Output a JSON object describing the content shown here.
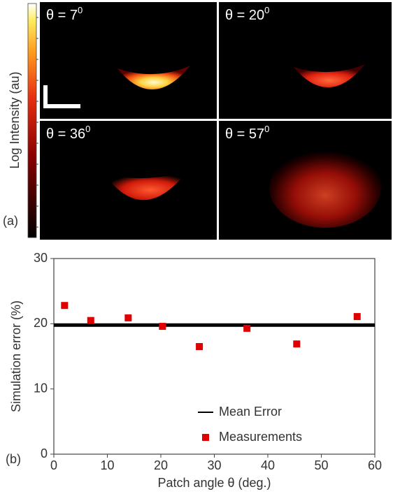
{
  "panel_a": {
    "panel_label": "(a)",
    "colorbar_label": "Log Intensity (au)",
    "images": [
      {
        "label": "θ = 7",
        "superscript": "0"
      },
      {
        "label": "θ = 20",
        "superscript": "0"
      },
      {
        "label": "θ = 36",
        "superscript": "0"
      },
      {
        "label": "θ = 57",
        "superscript": "0"
      }
    ]
  },
  "chart_data": {
    "type": "scatter",
    "panel_label": "(b)",
    "x_label": "Patch angle θ (deg.)",
    "y_label": "Simulation error (%)",
    "xlim": [
      0,
      60
    ],
    "xticks": [
      0,
      10,
      20,
      30,
      40,
      50,
      60
    ],
    "ylim": [
      0,
      30
    ],
    "yticks": [
      0,
      10,
      20,
      30
    ],
    "legend": "lower right",
    "series": [
      {
        "name": "Mean Error",
        "type": "line",
        "color": "#000000",
        "x": [
          0,
          60
        ],
        "values": [
          19.8,
          19.8
        ]
      },
      {
        "name": "Measurements",
        "type": "scatter",
        "color": "#e00000",
        "x": [
          2.0,
          6.9,
          13.9,
          20.3,
          27.2,
          36.1,
          45.4,
          56.7
        ],
        "values": [
          22.8,
          20.5,
          20.9,
          19.6,
          16.5,
          19.3,
          16.9,
          21.1
        ]
      }
    ]
  }
}
